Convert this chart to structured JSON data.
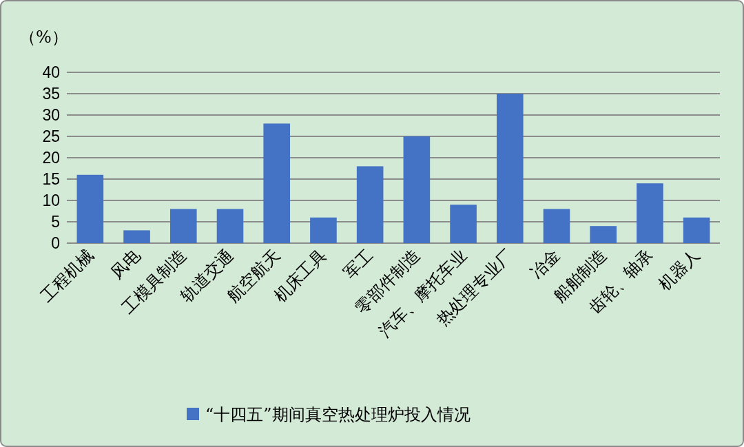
{
  "chart_data": {
    "type": "bar",
    "ylabel": "（%）",
    "categories": [
      "工程机械",
      "风电",
      "工模具制造",
      "轨道交通",
      "航空航天",
      "机床工具",
      "军工",
      "零部件制造",
      "汽车、摩托车业",
      "热处理专业厂",
      "冶金",
      "船舶制造",
      "齿轮、轴承",
      "机器人"
    ],
    "series": [
      {
        "name": "“十四五”期间真空热处理炉投入情况",
        "color": "#4472c4",
        "values": [
          16,
          3,
          8,
          8,
          28,
          6,
          18,
          25,
          9,
          35,
          8,
          4,
          14,
          6
        ]
      }
    ],
    "ylim": [
      0,
      40
    ],
    "yticks": [
      0,
      5,
      10,
      15,
      20,
      25,
      30,
      35,
      40
    ],
    "grid": "y",
    "legend": "bottom"
  }
}
